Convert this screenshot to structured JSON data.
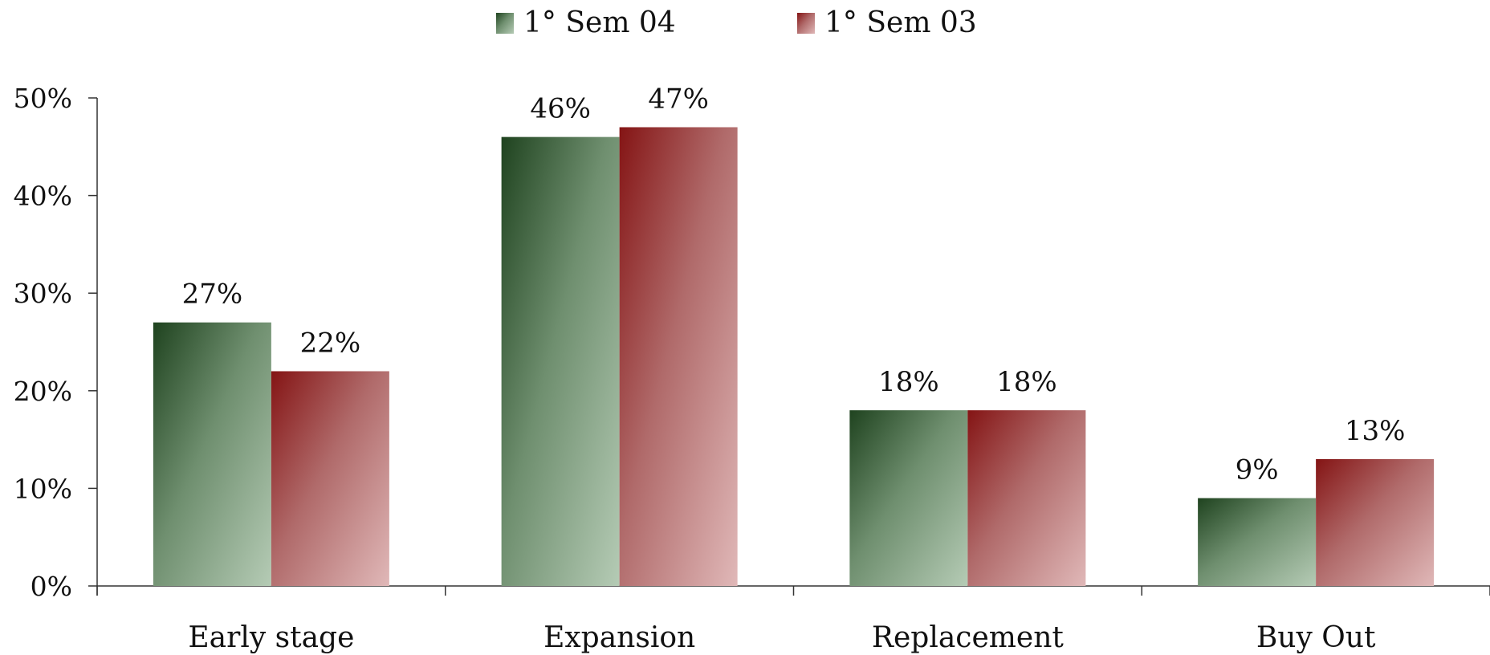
{
  "chart_data": {
    "type": "bar",
    "categories": [
      "Early stage",
      "Expansion",
      "Replacement",
      "Buy Out"
    ],
    "series": [
      {
        "name": "1° Sem 04",
        "values": [
          27,
          46,
          18,
          9
        ],
        "color": "#2f5a2f",
        "color_light": "#a9c2a9"
      },
      {
        "name": "1° Sem 03",
        "values": [
          22,
          47,
          18,
          13
        ],
        "color": "#8e1d1d",
        "color_light": "#dcb0b0"
      }
    ],
    "data_labels": [
      [
        "27%",
        "46%",
        "18%",
        "9%"
      ],
      [
        "22%",
        "47%",
        "18%",
        "13%"
      ]
    ],
    "yticks": [
      0,
      10,
      20,
      30,
      40,
      50
    ],
    "ytick_labels": [
      "0%",
      "10%",
      "20%",
      "30%",
      "40%",
      "50%"
    ],
    "ylim": [
      0,
      50
    ],
    "title": "",
    "xlabel": "",
    "ylabel": "",
    "legend": "top-center",
    "grid": false
  }
}
